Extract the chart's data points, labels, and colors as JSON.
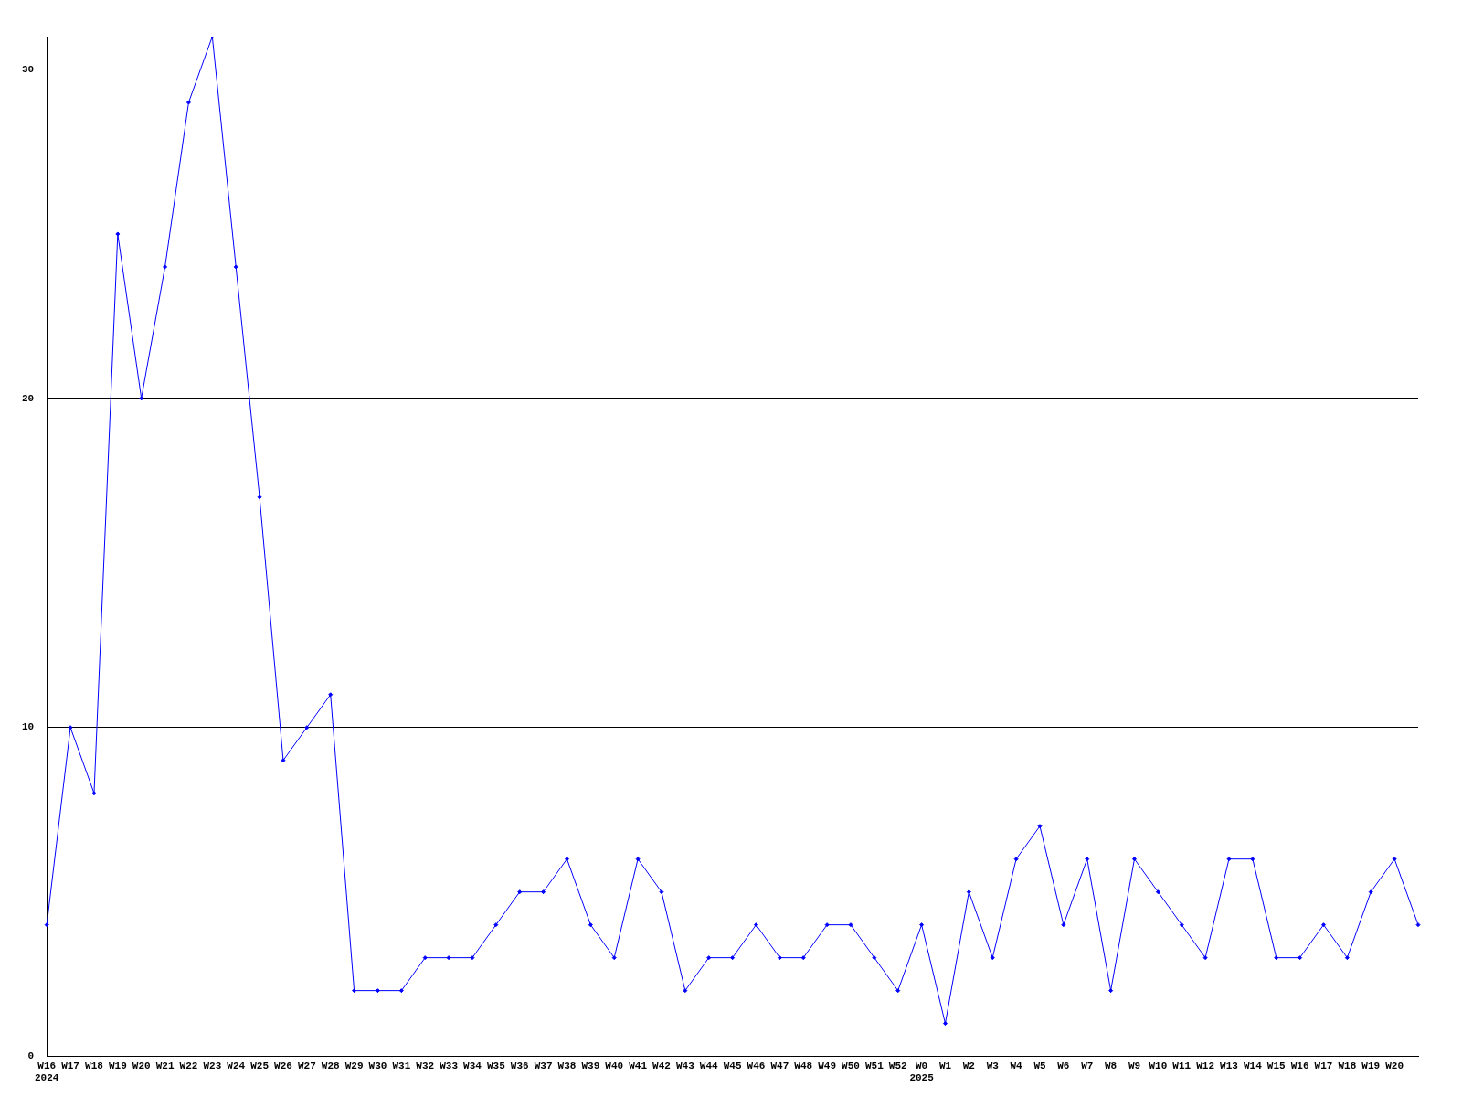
{
  "chart_data": {
    "type": "line",
    "categories": [
      "W16\n2024",
      "W17",
      "W18",
      "W19",
      "W20",
      "W21",
      "W22",
      "W23",
      "W24",
      "W25",
      "W26",
      "W27",
      "W28",
      "W29",
      "W30",
      "W31",
      "W32",
      "W33",
      "W34",
      "W35",
      "W36",
      "W37",
      "W38",
      "W39",
      "W40",
      "W41",
      "W42",
      "W43",
      "W44",
      "W45",
      "W46",
      "W47",
      "W48",
      "W49",
      "W50",
      "W51",
      "W52",
      "W0\n2025",
      "W1",
      "W2",
      "W3",
      "W4",
      "W5",
      "W6",
      "W7",
      "W8",
      "W9",
      "W10",
      "W11",
      "W12",
      "W13",
      "W14",
      "W15",
      "W16",
      "W17",
      "W18",
      "W19",
      "W20",
      null
    ],
    "series": [
      {
        "color": "#0000ff",
        "values": [
          4,
          10,
          8,
          25,
          20,
          24,
          29,
          31,
          24,
          17,
          9,
          10,
          11,
          2,
          2,
          2,
          3,
          3,
          3,
          4,
          5,
          5,
          6,
          4,
          3,
          6,
          5,
          2,
          3,
          3,
          4,
          3,
          3,
          4,
          4,
          3,
          2,
          4,
          1,
          5,
          3,
          6,
          7,
          4,
          6,
          2,
          6,
          5,
          4,
          3,
          6,
          6,
          3,
          3,
          4,
          3,
          5,
          6,
          4
        ]
      }
    ],
    "ylim": [
      0,
      31
    ],
    "yticks": [
      0,
      10,
      20,
      30
    ],
    "grid": "y",
    "legend": false,
    "marker": "diamond",
    "line_style": "solid"
  }
}
